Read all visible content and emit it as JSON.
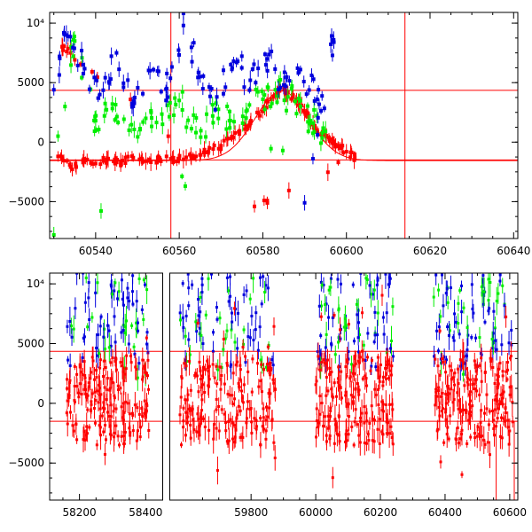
{
  "chart_data": [
    {
      "type": "scatter",
      "title": "",
      "xlabel": "",
      "ylabel": "",
      "xlim": [
        60529,
        60641
      ],
      "ylim": [
        -8100,
        10900
      ],
      "x_ticks": [
        60540,
        60560,
        60580,
        60600,
        60620,
        60640
      ],
      "x_tick_labels": [
        "60540",
        "60560",
        "60580",
        "60600",
        "60620",
        "60640"
      ],
      "y_ticks": [
        -5000,
        0,
        5000,
        10000
      ],
      "y_tick_labels": [
        "−5000",
        "0",
        "5000",
        "10⁴"
      ],
      "grid": false,
      "legend": "none",
      "series_colors": {
        "red": "#ff0000",
        "green": "#00ee00",
        "blue": "#0000dd"
      },
      "reference_lines": {
        "horizontal": [
          4350,
          -1500
        ],
        "vertical": [
          60558,
          60614
        ]
      },
      "model_curve": {
        "peak_x": 60584.5,
        "peak_y": 4300,
        "baseline_y": -1550,
        "color": "#ff0000"
      },
      "series": [
        {
          "color_key": "red",
          "points": [
            [
              60531,
              -1200
            ],
            [
              60534,
              -2100
            ],
            [
              60537,
              -1500
            ],
            [
              60540,
              -1800
            ],
            [
              60543,
              -1400
            ],
            [
              60546,
              -1700
            ],
            [
              60549,
              -1300
            ],
            [
              60552,
              -1600
            ],
            [
              60555,
              -1500
            ],
            [
              60558,
              -1400
            ],
            [
              60561,
              -1450
            ],
            [
              60564,
              -1200
            ],
            [
              60567,
              -800
            ],
            [
              60570,
              -300
            ],
            [
              60573,
              400
            ],
            [
              60576,
              1300
            ],
            [
              60579,
              2400
            ],
            [
              60582,
              3600
            ],
            [
              60584,
              4300
            ],
            [
              60586,
              4200
            ],
            [
              60588,
              3500
            ],
            [
              60590,
              2500
            ],
            [
              60592,
              1500
            ],
            [
              60594,
              700
            ],
            [
              60596,
              100
            ],
            [
              60598,
              -300
            ],
            [
              60600,
              -800
            ],
            [
              60602,
              -1300
            ],
            [
              60578,
              -5400
            ],
            [
              60534,
              7500
            ],
            [
              60532,
              8000
            ]
          ]
        },
        {
          "color_key": "green",
          "points": [
            [
              60531,
              500
            ],
            [
              60535,
              8500
            ],
            [
              60540,
              1800
            ],
            [
              60544,
              3200
            ],
            [
              60548,
              1000
            ],
            [
              60552,
              2000
            ],
            [
              60556,
              1500
            ],
            [
              60560,
              3500
            ],
            [
              60564,
              800
            ],
            [
              60568,
              2200
            ],
            [
              60572,
              1800
            ],
            [
              60576,
              2600
            ],
            [
              60580,
              3600
            ],
            [
              60583,
              4400
            ],
            [
              60586,
              3800
            ],
            [
              60589,
              3000
            ],
            [
              60592,
              1600
            ],
            [
              60595,
              900
            ],
            [
              60530,
              -7800
            ]
          ]
        },
        {
          "color_key": "blue",
          "points": [
            [
              60530,
              4400
            ],
            [
              60533,
              9000
            ],
            [
              60537,
              6500
            ],
            [
              60541,
              4000
            ],
            [
              60545,
              7500
            ],
            [
              60549,
              3000
            ],
            [
              60553,
              6000
            ],
            [
              60557,
              4500
            ],
            [
              60561,
              9800
            ],
            [
              60565,
              5500
            ],
            [
              60569,
              3800
            ],
            [
              60573,
              6800
            ],
            [
              60577,
              5200
            ],
            [
              60581,
              7000
            ],
            [
              60585,
              4800
            ],
            [
              60589,
              6100
            ],
            [
              60593,
              3600
            ],
            [
              60597,
              8400
            ],
            [
              60590,
              -5100
            ]
          ]
        }
      ]
    },
    {
      "type": "scatter",
      "title": "",
      "xlabel": "",
      "ylabel": "",
      "xlim": [
        58110,
        60625
      ],
      "ylim": [
        -8100,
        10900
      ],
      "axis_break": true,
      "x_ticks": [
        58200,
        58400,
        59800,
        60000,
        60200,
        60400,
        60600
      ],
      "x_tick_labels": [
        "58200",
        "58400",
        "59800",
        "60000",
        "60200",
        "60400",
        "60600"
      ],
      "y_ticks": [
        -5000,
        0,
        5000,
        10000
      ],
      "y_tick_labels": [
        "−5000",
        "0",
        "5000",
        "10⁴"
      ],
      "grid": false,
      "legend": "none",
      "series_colors": {
        "red": "#ff0000",
        "green": "#00ee00",
        "blue": "#0000dd"
      },
      "reference_lines": {
        "horizontal": [
          4350,
          -1500
        ],
        "vertical": [
          60558,
          60614
        ]
      },
      "seasons": [
        [
          58160,
          58410
        ],
        [
          59580,
          59875
        ],
        [
          60000,
          60240
        ],
        [
          60365,
          60610
        ]
      ]
    }
  ]
}
